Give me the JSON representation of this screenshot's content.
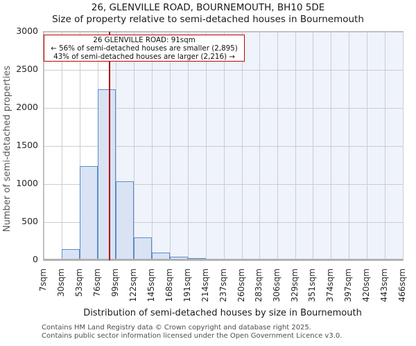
{
  "title": "26, GLENVILLE ROAD, BOURNEMOUTH, BH10 5DE",
  "subtitle": "Size of property relative to semi-detached houses in Bournemouth",
  "annotation": {
    "line1": "26 GLENVILLE ROAD: 91sqm",
    "line2": "← 56% of semi-detached houses are smaller (2,895)",
    "line3": "43% of semi-detached houses are larger (2,216) →"
  },
  "chart_data": {
    "type": "bar",
    "title": "26, GLENVILLE ROAD, BOURNEMOUTH, BH10 5DE",
    "subtitle": "Size of property relative to semi-detached houses in Bournemouth",
    "xlabel": "Distribution of semi-detached houses by size in Bournemouth",
    "ylabel": "Number of semi-detached properties",
    "categories": [
      "7sqm",
      "30sqm",
      "53sqm",
      "76sqm",
      "99sqm",
      "122sqm",
      "145sqm",
      "168sqm",
      "191sqm",
      "214sqm",
      "237sqm",
      "260sqm",
      "283sqm",
      "306sqm",
      "329sqm",
      "351sqm",
      "374sqm",
      "397sqm",
      "420sqm",
      "443sqm",
      "466sqm"
    ],
    "bin_edges_sqm": [
      7,
      30,
      53,
      76,
      99,
      122,
      145,
      168,
      191,
      214,
      237,
      260,
      283,
      306,
      329,
      351,
      374,
      397,
      420,
      443,
      466
    ],
    "values": [
      12,
      150,
      1240,
      2250,
      1040,
      300,
      100,
      45,
      30,
      15,
      10,
      0,
      10,
      10,
      0,
      0,
      0,
      0,
      0,
      0
    ],
    "ylim": [
      0,
      3000
    ],
    "yticks": [
      0,
      500,
      1000,
      1500,
      2000,
      2500,
      3000
    ],
    "grid": true,
    "marker_value_sqm": 91,
    "colors": {
      "bar_fill": "#d9e3f4",
      "bar_edge": "#5b8cc8",
      "marker_line": "#b00000",
      "annotation_border": "#c00000",
      "shaded_region": "#eff3fb",
      "gridline": "#cccccc"
    }
  },
  "footer": {
    "line1": "Contains HM Land Registry data © Crown copyright and database right 2025.",
    "line2": "Contains public sector information licensed under the Open Government Licence v3.0."
  }
}
